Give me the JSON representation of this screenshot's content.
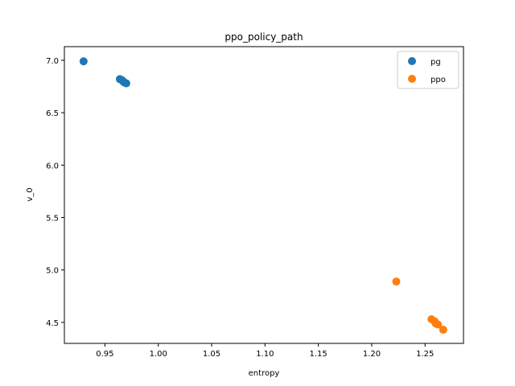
{
  "chart_data": {
    "type": "scatter",
    "title": "ppo_policy_path",
    "xlabel": "entropy",
    "ylabel": "v_0",
    "xlim": [
      0.912,
      1.286
    ],
    "ylim": [
      4.3,
      7.13
    ],
    "xticks": [
      0.95,
      1.0,
      1.05,
      1.1,
      1.15,
      1.2,
      1.25
    ],
    "xtick_labels": [
      "0.95",
      "1.00",
      "1.05",
      "1.10",
      "1.15",
      "1.20",
      "1.25"
    ],
    "yticks": [
      4.5,
      5.0,
      5.5,
      6.0,
      6.5,
      7.0
    ],
    "ytick_labels": [
      "4.5",
      "5.0",
      "5.5",
      "6.0",
      "6.5",
      "7.0"
    ],
    "grid": false,
    "legend_position": "top-right",
    "series": [
      {
        "name": "pg",
        "color": "#1f77b4",
        "points": [
          {
            "x": 0.93,
            "y": 6.99
          },
          {
            "x": 0.964,
            "y": 6.82
          },
          {
            "x": 0.966,
            "y": 6.81
          },
          {
            "x": 0.967,
            "y": 6.8
          },
          {
            "x": 0.968,
            "y": 6.79
          },
          {
            "x": 0.97,
            "y": 6.78
          }
        ]
      },
      {
        "name": "ppo",
        "color": "#ff7f0e",
        "points": [
          {
            "x": 1.223,
            "y": 4.89
          },
          {
            "x": 1.256,
            "y": 4.53
          },
          {
            "x": 1.259,
            "y": 4.51
          },
          {
            "x": 1.26,
            "y": 4.49
          },
          {
            "x": 1.262,
            "y": 4.48
          },
          {
            "x": 1.267,
            "y": 4.43
          }
        ]
      }
    ]
  }
}
